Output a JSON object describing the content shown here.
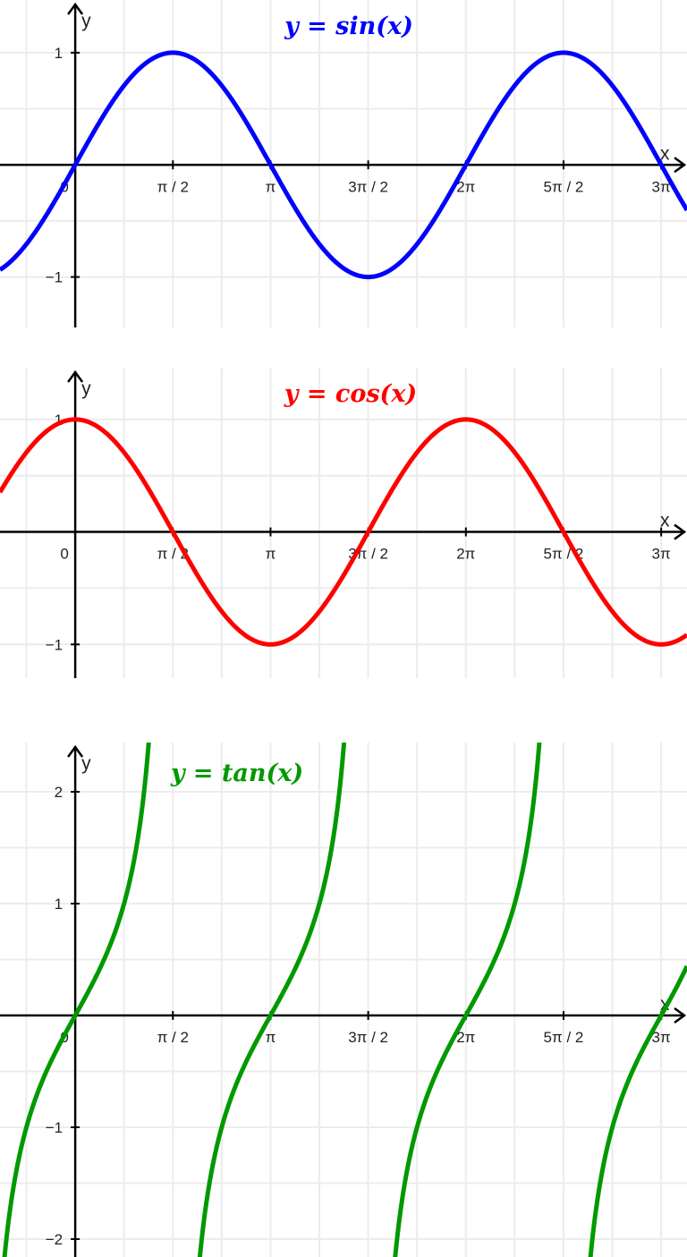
{
  "chart_data": [
    {
      "type": "line",
      "title": "y = sin(x)",
      "function": "sin",
      "color": "#0000ff",
      "xlabel": "x",
      "ylabel": "y",
      "xlim": [
        -1.21,
        9.84
      ],
      "ylim": [
        -1.45,
        1.47
      ],
      "x_ticks": [
        {
          "value": 0,
          "label": "0"
        },
        {
          "value": 1.5708,
          "label": "π / 2"
        },
        {
          "value": 3.1416,
          "label": "π"
        },
        {
          "value": 4.7124,
          "label": "3π / 2"
        },
        {
          "value": 6.2832,
          "label": "2π"
        },
        {
          "value": 7.854,
          "label": "5π / 2"
        },
        {
          "value": 9.4248,
          "label": "3π"
        }
      ],
      "y_ticks": [
        {
          "value": 1,
          "label": "1"
        },
        {
          "value": -1,
          "label": "−1"
        }
      ],
      "grid": true,
      "grid_step_x": "π/4",
      "grid_step_y": 0.5
    },
    {
      "type": "line",
      "title": "y = cos(x)",
      "function": "cos",
      "color": "#ff0000",
      "xlabel": "x",
      "ylabel": "y",
      "xlim": [
        -1.21,
        9.84
      ],
      "ylim": [
        -1.3,
        1.46
      ],
      "x_ticks": [
        {
          "value": 0,
          "label": "0"
        },
        {
          "value": 1.5708,
          "label": "π / 2"
        },
        {
          "value": 3.1416,
          "label": "π"
        },
        {
          "value": 4.7124,
          "label": "3π / 2"
        },
        {
          "value": 6.2832,
          "label": "2π"
        },
        {
          "value": 7.854,
          "label": "5π / 2"
        },
        {
          "value": 9.4248,
          "label": "3π"
        }
      ],
      "y_ticks": [
        {
          "value": 1,
          "label": "1"
        },
        {
          "value": -1,
          "label": "−1"
        }
      ],
      "grid": true,
      "grid_step_x": "π/4",
      "grid_step_y": 0.5
    },
    {
      "type": "line",
      "title": "y = tan(x)",
      "function": "tan",
      "color": "#009900",
      "xlabel": "x",
      "ylabel": "y",
      "xlim": [
        -1.21,
        9.84
      ],
      "ylim": [
        -2.16,
        2.44
      ],
      "x_ticks": [
        {
          "value": 0,
          "label": "0"
        },
        {
          "value": 1.5708,
          "label": "π / 2"
        },
        {
          "value": 3.1416,
          "label": "π"
        },
        {
          "value": 4.7124,
          "label": "3π / 2"
        },
        {
          "value": 6.2832,
          "label": "2π"
        },
        {
          "value": 7.854,
          "label": "5π / 2"
        },
        {
          "value": 9.4248,
          "label": "3π"
        }
      ],
      "y_ticks": [
        {
          "value": 2,
          "label": "2"
        },
        {
          "value": 1,
          "label": "1"
        },
        {
          "value": -1,
          "label": "−1"
        },
        {
          "value": -2,
          "label": "−2"
        }
      ],
      "grid": true,
      "grid_step_x": "π/4",
      "grid_step_y": 0.5
    }
  ]
}
